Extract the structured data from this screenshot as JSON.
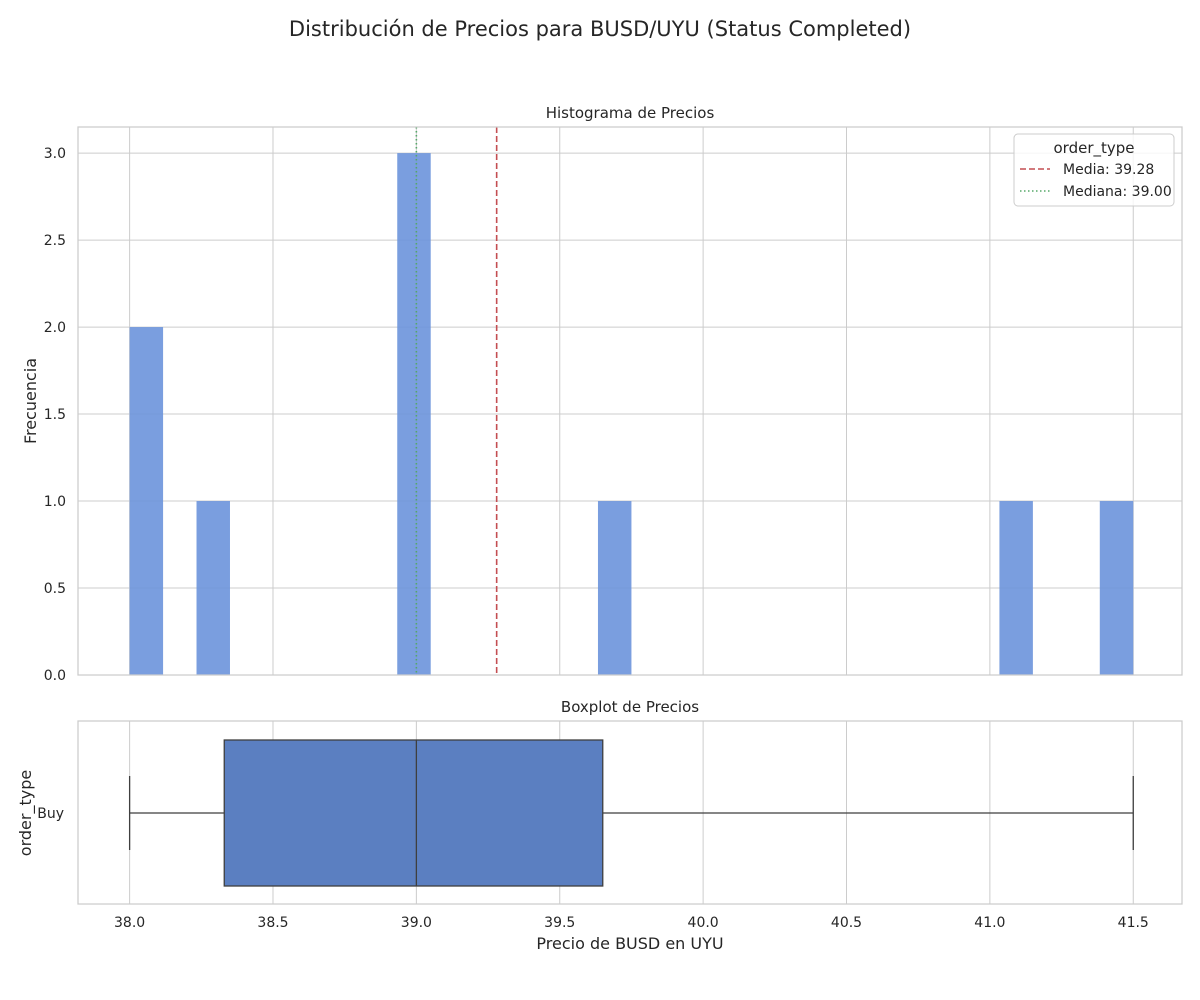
{
  "figure_title": "Distribución de Precios para BUSD/UYU (Status Completed)",
  "chart_data": [
    {
      "type": "histogram",
      "title": "Histograma de Precios",
      "xlabel": "",
      "ylabel": "Frecuencia",
      "xlim": [
        37.82,
        41.67
      ],
      "ylim": [
        0,
        3.15
      ],
      "yticks": [
        0.0,
        0.5,
        1.0,
        1.5,
        2.0,
        2.5,
        3.0
      ],
      "ytick_labels": [
        "0.0",
        "0.5",
        "1.0",
        "1.5",
        "2.0",
        "2.5",
        "3.0"
      ],
      "bar_color": "#6b93db",
      "bins": [
        {
          "start": 38.0,
          "end": 38.1167,
          "count": 2
        },
        {
          "start": 38.2333,
          "end": 38.35,
          "count": 1
        },
        {
          "start": 38.9333,
          "end": 39.05,
          "count": 3
        },
        {
          "start": 39.6333,
          "end": 39.75,
          "count": 1
        },
        {
          "start": 41.0333,
          "end": 41.15,
          "count": 1
        },
        {
          "start": 41.3833,
          "end": 41.5,
          "count": 1
        }
      ],
      "reference_lines": [
        {
          "label": "Media: 39.28",
          "value": 39.28,
          "color": "#c44e52",
          "style": "dashed"
        },
        {
          "label": "Mediana: 39.00",
          "value": 39.0,
          "color": "#55a868",
          "style": "dotted"
        }
      ],
      "legend": {
        "title": "order_type",
        "placement": "upper-right"
      },
      "grid": true
    },
    {
      "type": "boxplot",
      "title": "Boxplot de Precios",
      "xlabel": "Precio de BUSD en UYU",
      "ylabel": "order_type",
      "categories": [
        "Buy"
      ],
      "xlim": [
        37.82,
        41.67
      ],
      "xticks": [
        38.0,
        38.5,
        39.0,
        39.5,
        40.0,
        40.5,
        41.0,
        41.5
      ],
      "xtick_labels": [
        "38.0",
        "38.5",
        "39.0",
        "39.5",
        "40.0",
        "40.5",
        "41.0",
        "41.5"
      ],
      "box_color": "#5b7fc1",
      "stats": {
        "min": 38.0,
        "q1": 38.33,
        "median": 39.0,
        "q3": 39.65,
        "max": 41.5
      },
      "grid": true
    }
  ]
}
